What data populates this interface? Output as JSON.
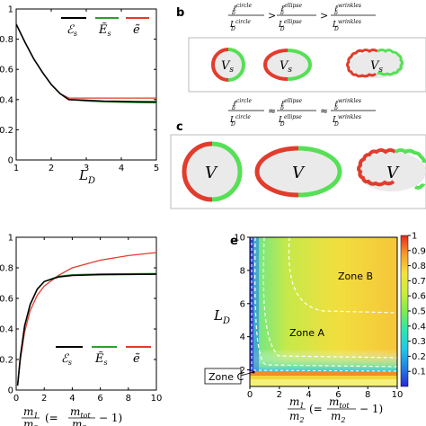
{
  "figure": {
    "panel_b": {
      "letter": "b",
      "relation": ">",
      "shapes": [
        {
          "label": "V",
          "sub": "s"
        },
        {
          "label": "V",
          "sub": "s"
        },
        {
          "label": "V",
          "sub": "s"
        }
      ],
      "frac_num": "ℓ",
      "sup_circle": "circle",
      "sup_ellipse": "ellipse",
      "sup_wrinkles": "wrinkles",
      "sub_b": "b",
      "den_L": "L",
      "den_sub": "D"
    },
    "panel_c": {
      "letter": "c",
      "relation": "≈",
      "shapes": [
        {
          "label": "V"
        },
        {
          "label": "V"
        },
        {
          "label": "V"
        }
      ]
    },
    "panel_e": {
      "letter": "e",
      "zones": [
        "Zone B",
        "Zone A",
        "Zone C"
      ]
    },
    "legend_names": [
      "ℰ",
      "Ẽ",
      "ẽ"
    ],
    "legend_subs": [
      "s",
      "s",
      ""
    ],
    "top_xlabel": {
      "L": "L",
      "sub": "D"
    },
    "bottom_xlabel": {
      "m1": "m",
      "s1": "1",
      "m2": "m",
      "s2": "2",
      "eq_open": "(=",
      "mtot": "m",
      "stot": "tot",
      "eq_close": "− 1)"
    },
    "heat_ylabel": {
      "L": "L",
      "sub": "D"
    },
    "colors": {
      "black": "#000000",
      "green": "#2e9e2e",
      "red": "#e23c2c",
      "light_red": "#e87a6a",
      "green_light": "#55e055"
    }
  },
  "chart_data": [
    {
      "type": "line",
      "xlabel": "L_D",
      "xlim": [
        1,
        5
      ],
      "ylim": [
        0,
        1
      ],
      "xticks": [
        "1",
        "2",
        "3",
        "4",
        "5"
      ],
      "yticks": [
        "0",
        "0.2",
        "0.4",
        "0.6",
        "0.8",
        "1"
      ],
      "series": [
        {
          "name": "ℰs",
          "color": "#000000",
          "x": [
            1,
            1.25,
            1.5,
            1.75,
            2,
            2.25,
            2.5,
            3,
            3.5,
            4,
            4.5,
            5
          ],
          "y": [
            0.9,
            0.78,
            0.67,
            0.58,
            0.5,
            0.44,
            0.4,
            0.395,
            0.39,
            0.388,
            0.386,
            0.385
          ]
        },
        {
          "name": "Ẽs",
          "color": "#2e9e2e",
          "x": [
            1,
            1.25,
            1.5,
            1.75,
            2,
            2.25,
            2.5,
            3,
            3.5,
            4,
            4.5,
            5
          ],
          "y": [
            0.9,
            0.78,
            0.67,
            0.58,
            0.5,
            0.44,
            0.4,
            0.39,
            0.385,
            0.382,
            0.38,
            0.378
          ]
        },
        {
          "name": "ẽ",
          "color": "#e23c2c",
          "x": [
            1,
            1.25,
            1.5,
            1.75,
            2,
            2.25,
            2.5,
            3,
            3.5,
            4,
            4.5,
            5
          ],
          "y": [
            0.9,
            0.78,
            0.67,
            0.58,
            0.5,
            0.44,
            0.41,
            0.41,
            0.41,
            0.41,
            0.41,
            0.41
          ]
        }
      ]
    },
    {
      "type": "line",
      "xlabel": "m1/m2 (= mtot/m2 − 1)",
      "xlim": [
        0,
        10
      ],
      "ylim": [
        0,
        1
      ],
      "xticks": [
        "0",
        "2",
        "4",
        "6",
        "8",
        "10"
      ],
      "yticks": [
        "0",
        "0.2",
        "0.4",
        "0.6",
        "0.8",
        "1"
      ],
      "series": [
        {
          "name": "ℰs",
          "color": "#000000",
          "x": [
            0.1,
            0.3,
            0.6,
            1,
            1.5,
            2,
            3,
            4,
            6,
            8,
            10
          ],
          "y": [
            0.03,
            0.22,
            0.42,
            0.56,
            0.66,
            0.71,
            0.74,
            0.75,
            0.755,
            0.757,
            0.758
          ]
        },
        {
          "name": "Ẽs",
          "color": "#2e9e2e",
          "x": [
            0.1,
            0.3,
            0.6,
            1,
            1.5,
            2,
            3,
            4,
            6,
            8,
            10
          ],
          "y": [
            0.03,
            0.22,
            0.42,
            0.56,
            0.66,
            0.71,
            0.745,
            0.755,
            0.76,
            0.762,
            0.763
          ]
        },
        {
          "name": "ẽ",
          "color": "#e23c2c",
          "x": [
            0.1,
            0.3,
            0.6,
            1,
            1.5,
            2,
            3,
            4,
            6,
            8,
            10
          ],
          "y": [
            0.03,
            0.2,
            0.38,
            0.52,
            0.62,
            0.68,
            0.75,
            0.8,
            0.85,
            0.88,
            0.9
          ]
        }
      ]
    },
    {
      "type": "heatmap",
      "xlabel": "m1/m2 (= mtot/m2 − 1)",
      "ylabel": "L_D",
      "xlim": [
        0,
        10
      ],
      "ylim": [
        1,
        10
      ],
      "xticks": [
        "0",
        "2",
        "4",
        "6",
        "8",
        "10"
      ],
      "yticks": [
        "2",
        "4",
        "6",
        "8",
        "10"
      ],
      "colorbar_ticks": [
        "0.1",
        "0.2",
        "0.3",
        "0.4",
        "0.5",
        "0.6",
        "0.7",
        "0.8",
        "0.9",
        "1"
      ],
      "zones": [
        "Zone A",
        "Zone B",
        "Zone C"
      ]
    }
  ]
}
